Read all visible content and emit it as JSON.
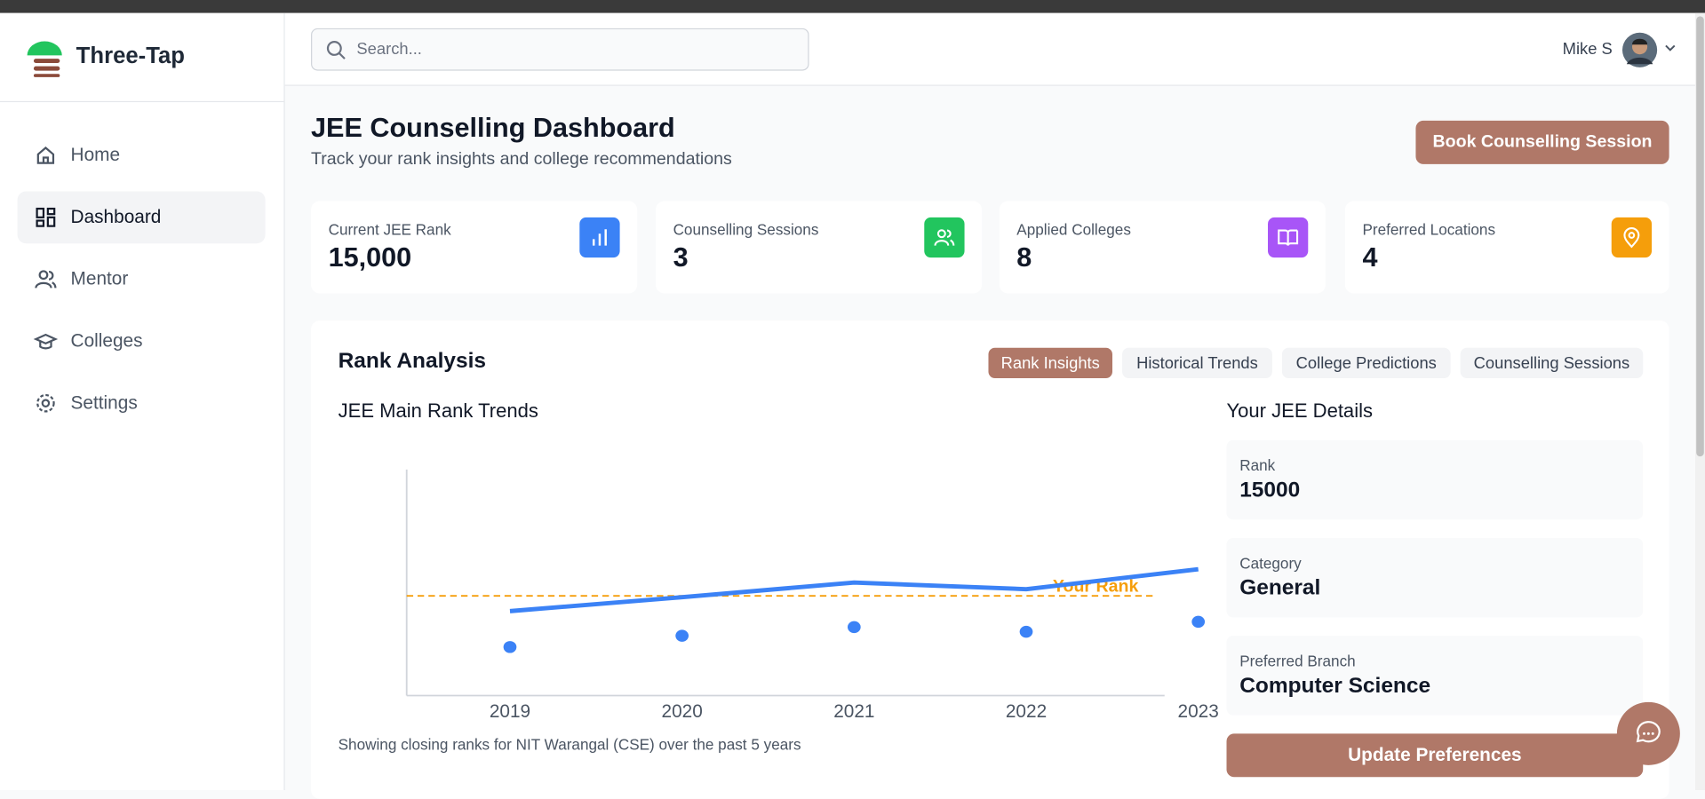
{
  "sidebar": {
    "brand": "Three-Tap",
    "nav": [
      "Home",
      "Dashboard",
      "Mentor",
      "Colleges",
      "Settings"
    ]
  },
  "header": {
    "search_placeholder": "Search...",
    "user": "Mike S"
  },
  "page": {
    "title": "JEE Counselling Dashboard",
    "subtitle": "Track your rank insights and college recommendations",
    "button": "Book Counselling Session"
  },
  "stats": [
    {
      "label": "Current JEE Rank",
      "value": "15,000"
    },
    {
      "label": "Counselling Sessions",
      "value": 3
    },
    {
      "label": "Applied Colleges",
      "value": 8
    },
    {
      "label": "Preferred Locations",
      "value": 4
    }
  ],
  "analysis": {
    "title": "Rank Analysis",
    "tabs": [
      "Rank Insights",
      "Historical Trends",
      "College Predictions",
      "Counselling Sessions"
    ]
  },
  "chart_data": {
    "type": "line",
    "title": "JEE Main Rank Trends",
    "categories": [
      "2019",
      "2020",
      "2021",
      "2022",
      "2023"
    ],
    "series": [
      {
        "color": "#3b82f6",
        "values": [
          12700,
          14800,
          17000,
          16000,
          19000
        ]
      },
      {
        "color": "#3b82f6",
        "line": false,
        "values": [
          7300,
          9000,
          10300,
          9600,
          11100
        ]
      }
    ],
    "reference": {
      "label": "Your Rank",
      "value": 15000,
      "color": "#f59e0b"
    },
    "ylim": [
      0,
      34000
    ],
    "caption": "Showing closing ranks for NIT Warangal (CSE) over the past 5 years"
  },
  "details": {
    "title": "Your JEE Details",
    "items": [
      {
        "label": "Rank",
        "value": "15000"
      },
      {
        "label": "Category",
        "value": "General"
      },
      {
        "label": "Preferred Branch",
        "value": "Computer Science"
      }
    ],
    "button": "Update Preferences"
  }
}
